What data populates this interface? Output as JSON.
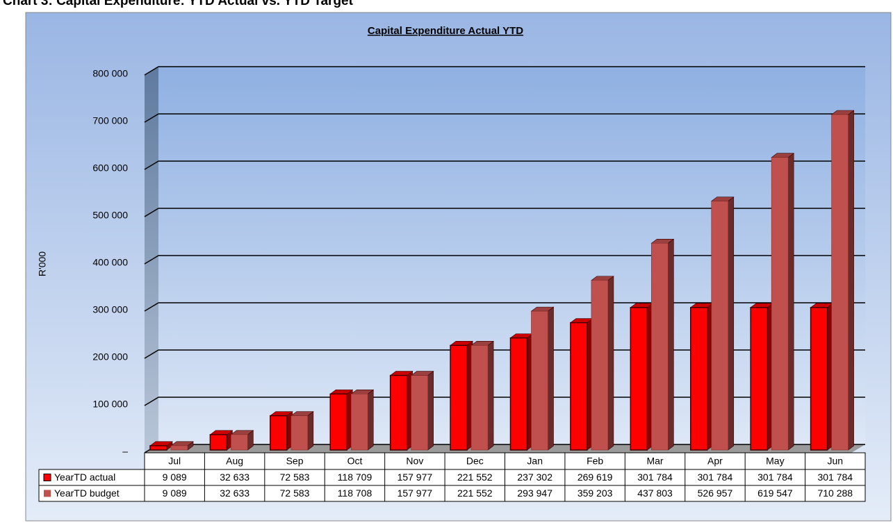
{
  "page_title": "Chart 3: Capital Expenditure: YTD Actual vs. YTD Target",
  "chart_data": {
    "type": "bar3d",
    "title": "Capital Expenditure Actual YTD",
    "y_label": "R'000",
    "categories": [
      "Jul",
      "Aug",
      "Sep",
      "Oct",
      "Nov",
      "Dec",
      "Jan",
      "Feb",
      "Mar",
      "Apr",
      "May",
      "Jun"
    ],
    "series": [
      {
        "name": "YearTD actual",
        "color": "#ff0000",
        "values": [
          9089,
          32633,
          72583,
          118709,
          157977,
          221552,
          237302,
          269619,
          301784,
          301784,
          301784,
          301784
        ],
        "value_labels": [
          "9 089",
          "32 633",
          "72 583",
          "118 709",
          "157 977",
          "221 552",
          "237 302",
          "269 619",
          "301 784",
          "301 784",
          "301 784",
          "301 784"
        ]
      },
      {
        "name": "YearTD budget",
        "color": "#c0504d",
        "values": [
          9089,
          32633,
          72583,
          118708,
          157977,
          221552,
          293947,
          359203,
          437803,
          526957,
          619547,
          710288
        ],
        "value_labels": [
          "9 089",
          "32 633",
          "72 583",
          "118 708",
          "157 977",
          "221 552",
          "293 947",
          "359 203",
          "437 803",
          "526 957",
          "619 547",
          "710 288"
        ]
      }
    ],
    "ylim": [
      0,
      800000
    ],
    "yticks": [
      {
        "value": 0,
        "label": "–"
      },
      {
        "value": 100000,
        "label": "100 000"
      },
      {
        "value": 200000,
        "label": "200 000"
      },
      {
        "value": 300000,
        "label": "300 000"
      },
      {
        "value": 400000,
        "label": "400 000"
      },
      {
        "value": 500000,
        "label": "500 000"
      },
      {
        "value": 600000,
        "label": "600 000"
      },
      {
        "value": 700000,
        "label": "700 000"
      },
      {
        "value": 800000,
        "label": "800 000"
      }
    ],
    "grid": true
  }
}
